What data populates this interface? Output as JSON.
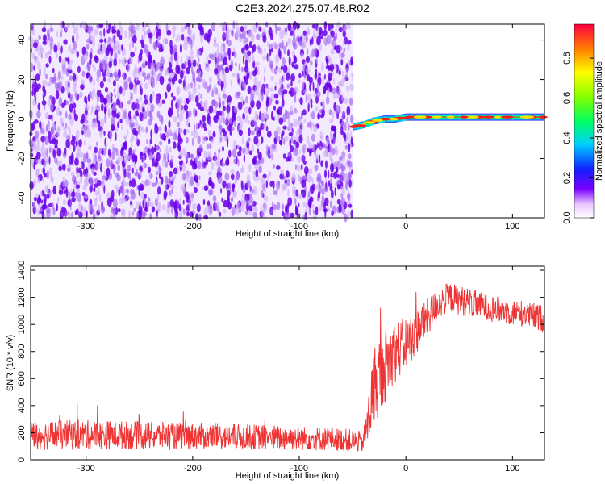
{
  "title": "C2E3.2024.275.07.48.R02",
  "colors": {
    "snr_line": "#ee3333",
    "noise_purple": "#6a00e8",
    "frame": "#000000"
  },
  "chart_data": [
    {
      "type": "heatmap",
      "xlabel": "Height of straight line (km)",
      "ylabel": "Frequency (Hz)",
      "xlim": [
        -352,
        130
      ],
      "ylim": [
        -50,
        48
      ],
      "xticks": [
        -300,
        -200,
        -100,
        0,
        100
      ],
      "yticks": [
        -40,
        -20,
        0,
        20,
        40
      ],
      "noise_region_x": [
        -352,
        -50
      ],
      "signal_track": [
        {
          "x": -50,
          "y": -4
        },
        {
          "x": -40,
          "y": -3
        },
        {
          "x": -30,
          "y": -1
        },
        {
          "x": -20,
          "y": 0
        },
        {
          "x": -10,
          "y": 0
        },
        {
          "x": 0,
          "y": 1
        },
        {
          "x": 20,
          "y": 1
        },
        {
          "x": 50,
          "y": 1
        },
        {
          "x": 80,
          "y": 1
        },
        {
          "x": 100,
          "y": 1
        },
        {
          "x": 130,
          "y": 1
        }
      ],
      "colorbar": {
        "label": "Normalized spectral amplitude",
        "range": [
          0,
          0.97
        ],
        "ticks": [
          0.0,
          0.2,
          0.4,
          0.6,
          0.8
        ],
        "tick_labels": [
          "0.0",
          "0.2",
          "0.4",
          "0.6",
          "0.8"
        ]
      }
    },
    {
      "type": "line",
      "xlabel": "Height of straight line (km)",
      "ylabel": "SNR (10 * v/v)",
      "xlim": [
        -352,
        130
      ],
      "ylim": [
        0,
        1430
      ],
      "xticks": [
        -300,
        -200,
        -100,
        0,
        100
      ],
      "yticks": [
        0,
        200,
        400,
        600,
        800,
        1000,
        1200,
        1400
      ],
      "series": [
        {
          "x": [
            -352,
            -300,
            -250,
            -200,
            -150,
            -100,
            -60,
            -40,
            -35,
            -30,
            -20,
            -10,
            0,
            10,
            20,
            30,
            40,
            50,
            60,
            70,
            80,
            90,
            100,
            110,
            120,
            130
          ],
          "y": [
            180,
            185,
            180,
            175,
            170,
            160,
            150,
            130,
            300,
            550,
            700,
            800,
            860,
            950,
            1050,
            1150,
            1200,
            1180,
            1160,
            1140,
            1120,
            1100,
            1090,
            1080,
            1060,
            1040
          ],
          "noise_amplitude": [
            110,
            110,
            105,
            100,
            95,
            90,
            85,
            80,
            200,
            300,
            280,
            230,
            200,
            170,
            140,
            120,
            110,
            110,
            110,
            100,
            100,
            100,
            100,
            100,
            100,
            100
          ]
        }
      ]
    }
  ]
}
